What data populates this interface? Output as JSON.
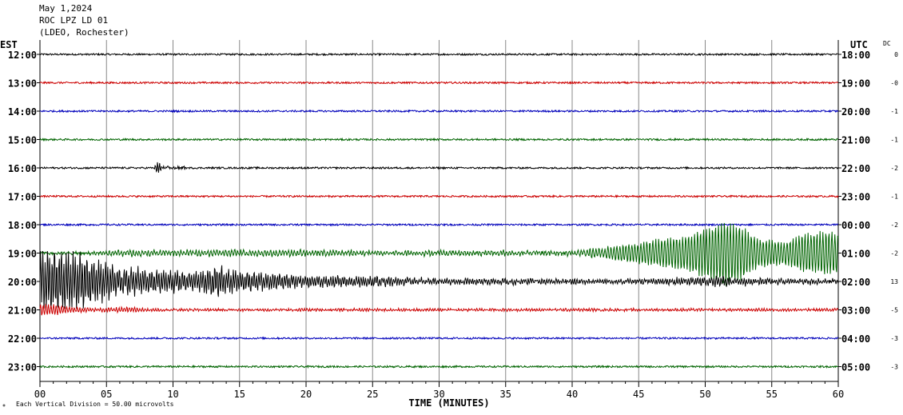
{
  "header": {
    "date": "May 1,2024",
    "station": "ROC LPZ LD 01",
    "network": "(LDEO, Rochester)"
  },
  "chart_data": {
    "type": "line",
    "title": "ROC LPZ LD 01",
    "left_axis_label": "EST",
    "right_axis_label": "UTC",
    "dc_label": "DC",
    "xlabel": "TIME (MINUTES)",
    "xlim": [
      0,
      60
    ],
    "x_ticks": [
      "00",
      "05",
      "10",
      "15",
      "20",
      "25",
      "30",
      "35",
      "40",
      "45",
      "50",
      "55",
      "60"
    ],
    "scale_note": "Each Vertical Division =   50.00 microvolts",
    "grid": true,
    "rows": [
      {
        "est": "12:00",
        "utc": "18:00",
        "dc": "0",
        "color": "#000000"
      },
      {
        "est": "13:00",
        "utc": "19:00",
        "dc": "-0",
        "color": "#cc0000"
      },
      {
        "est": "14:00",
        "utc": "20:00",
        "dc": "-1",
        "color": "#0000bb"
      },
      {
        "est": "15:00",
        "utc": "21:00",
        "dc": "-1",
        "color": "#006400"
      },
      {
        "est": "16:00",
        "utc": "22:00",
        "dc": "-2",
        "color": "#000000"
      },
      {
        "est": "17:00",
        "utc": "23:00",
        "dc": "-1",
        "color": "#cc0000"
      },
      {
        "est": "18:00",
        "utc": "00:00",
        "dc": "-2",
        "color": "#0000bb"
      },
      {
        "est": "19:00",
        "utc": "01:00",
        "dc": "-2",
        "color": "#006400"
      },
      {
        "est": "20:00",
        "utc": "02:00",
        "dc": "13",
        "color": "#000000"
      },
      {
        "est": "21:00",
        "utc": "03:00",
        "dc": "-5",
        "color": "#cc0000"
      },
      {
        "est": "22:00",
        "utc": "04:00",
        "dc": "-3",
        "color": "#0000bb"
      },
      {
        "est": "23:00",
        "utc": "05:00",
        "dc": "-3",
        "color": "#006400"
      }
    ]
  }
}
